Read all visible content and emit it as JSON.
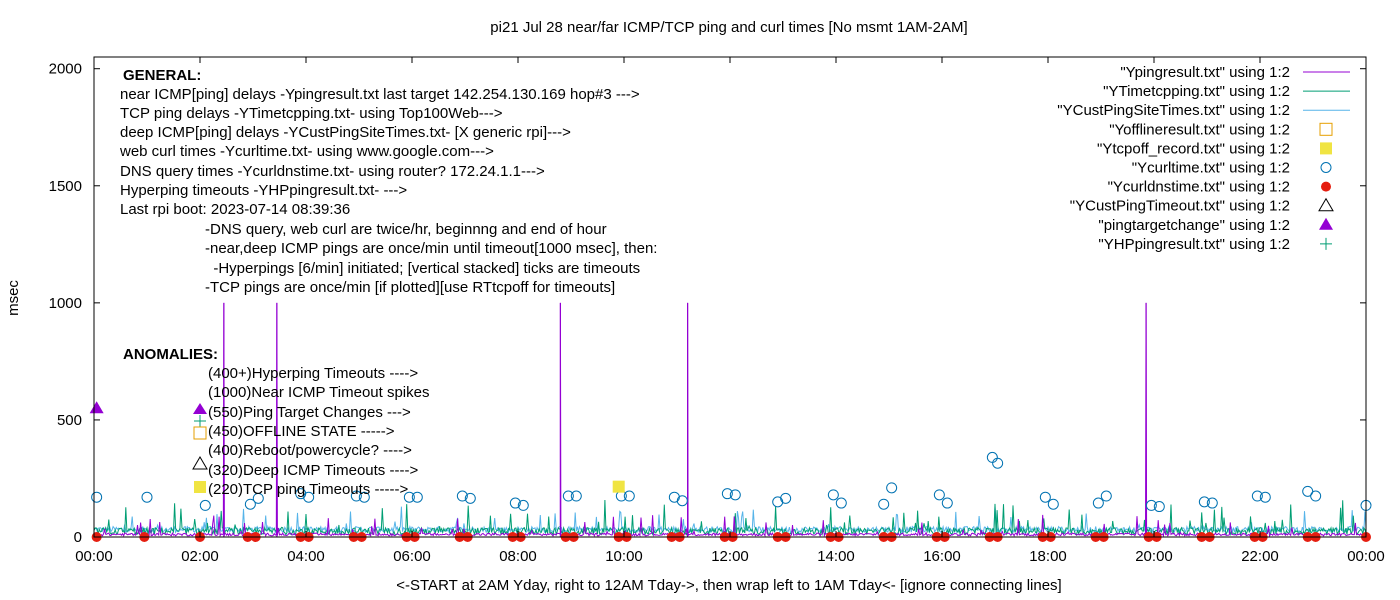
{
  "chart_data": {
    "type": "line",
    "title": "pi21 Jul 28  near/far ICMP/TCP ping and curl times [No msmt 1AM-2AM]",
    "xlabel": "<-START at 2AM Yday, right to 12AM Tday->, then wrap left to 1AM Tday<- [ignore connecting lines]",
    "ylabel": "msec",
    "xlim": [
      0,
      24
    ],
    "ylim": [
      0,
      2050
    ],
    "x_ticks": [
      "00:00",
      "02:00",
      "04:00",
      "06:00",
      "08:00",
      "10:00",
      "12:00",
      "14:00",
      "16:00",
      "18:00",
      "20:00",
      "22:00",
      "00:00"
    ],
    "y_ticks": [
      0,
      500,
      1000,
      1500,
      2000
    ],
    "legend_position": "top-right",
    "legend": [
      {
        "label": "\"Ypingresult.txt\" using 1:2",
        "style": "line",
        "color": "#9400d3"
      },
      {
        "label": "\"YTimetcpping.txt\" using 1:2",
        "style": "line",
        "color": "#009e73"
      },
      {
        "label": "\"YCustPingSiteTimes.txt\" using 1:2",
        "style": "line",
        "color": "#56b4e9"
      },
      {
        "label": "\"Yofflineresult.txt\" using 1:2",
        "style": "open-square",
        "color": "#e69f00"
      },
      {
        "label": "\"Ytcpoff_record.txt\" using 1:2",
        "style": "filled-square",
        "color": "#f0e442"
      },
      {
        "label": "\"Ycurltime.txt\" using 1:2",
        "style": "open-circle",
        "color": "#0072b2"
      },
      {
        "label": "\"Ycurldnstime.txt\" using 1:2",
        "style": "filled-circle",
        "color": "#e51e10"
      },
      {
        "label": "\"YCustPingTimeout.txt\" using 1:2",
        "style": "open-triangle",
        "color": "#000000"
      },
      {
        "label": "\"pingtargetchange\" using 1:2",
        "style": "filled-triangle",
        "color": "#9400d3"
      },
      {
        "label": "\"YHPpingresult.txt\" using 1:2",
        "style": "plus",
        "color": "#009e73"
      }
    ],
    "spikes_ypingresult": [
      {
        "x": 2.45,
        "y": 1000
      },
      {
        "x": 3.45,
        "y": 1000
      },
      {
        "x": 8.8,
        "y": 1000
      },
      {
        "x": 11.2,
        "y": 1000
      },
      {
        "x": 19.85,
        "y": 1000
      }
    ],
    "curltime_points": [
      {
        "x": 0.05,
        "y": 170
      },
      {
        "x": 1.0,
        "y": 170
      },
      {
        "x": 2.1,
        "y": 135
      },
      {
        "x": 2.95,
        "y": 140
      },
      {
        "x": 3.1,
        "y": 165
      },
      {
        "x": 3.9,
        "y": 185
      },
      {
        "x": 4.05,
        "y": 170
      },
      {
        "x": 4.95,
        "y": 175
      },
      {
        "x": 5.1,
        "y": 170
      },
      {
        "x": 5.95,
        "y": 170
      },
      {
        "x": 6.1,
        "y": 170
      },
      {
        "x": 6.95,
        "y": 175
      },
      {
        "x": 7.1,
        "y": 165
      },
      {
        "x": 7.95,
        "y": 145
      },
      {
        "x": 8.1,
        "y": 135
      },
      {
        "x": 8.95,
        "y": 175
      },
      {
        "x": 9.1,
        "y": 175
      },
      {
        "x": 9.95,
        "y": 175
      },
      {
        "x": 10.1,
        "y": 175
      },
      {
        "x": 10.95,
        "y": 170
      },
      {
        "x": 11.1,
        "y": 155
      },
      {
        "x": 11.95,
        "y": 185
      },
      {
        "x": 12.1,
        "y": 180
      },
      {
        "x": 12.9,
        "y": 150
      },
      {
        "x": 13.05,
        "y": 165
      },
      {
        "x": 13.95,
        "y": 180
      },
      {
        "x": 14.1,
        "y": 145
      },
      {
        "x": 14.9,
        "y": 140
      },
      {
        "x": 15.05,
        "y": 210
      },
      {
        "x": 15.95,
        "y": 180
      },
      {
        "x": 16.1,
        "y": 145
      },
      {
        "x": 16.95,
        "y": 340
      },
      {
        "x": 17.05,
        "y": 315
      },
      {
        "x": 17.95,
        "y": 170
      },
      {
        "x": 18.1,
        "y": 140
      },
      {
        "x": 18.95,
        "y": 145
      },
      {
        "x": 19.1,
        "y": 175
      },
      {
        "x": 19.95,
        "y": 135
      },
      {
        "x": 20.1,
        "y": 130
      },
      {
        "x": 20.95,
        "y": 150
      },
      {
        "x": 21.1,
        "y": 145
      },
      {
        "x": 21.95,
        "y": 175
      },
      {
        "x": 22.1,
        "y": 170
      },
      {
        "x": 22.9,
        "y": 195
      },
      {
        "x": 23.05,
        "y": 175
      },
      {
        "x": 24.0,
        "y": 135
      }
    ],
    "curldnstime_points_y": 0,
    "curldnstime_points_x": [
      0.05,
      0.95,
      2.0,
      2.9,
      3.05,
      3.9,
      4.05,
      4.9,
      5.05,
      5.9,
      6.05,
      6.9,
      7.05,
      7.9,
      8.05,
      8.9,
      9.05,
      9.9,
      10.05,
      10.9,
      11.05,
      11.9,
      12.05,
      12.9,
      13.05,
      13.9,
      14.05,
      14.9,
      15.05,
      15.9,
      16.05,
      16.9,
      17.05,
      17.9,
      18.05,
      18.9,
      19.05,
      19.9,
      20.05,
      20.9,
      21.05,
      21.9,
      22.05,
      22.9,
      23.05,
      24.0
    ],
    "pingtargetchange_points": [
      {
        "x": 0.05,
        "y": 550
      }
    ],
    "tcpoff_points": [
      {
        "x": 9.9,
        "y": 215
      }
    ]
  },
  "general": {
    "heading": "GENERAL:",
    "lines": [
      "near ICMP[ping] delays -Ypingresult.txt last target 142.254.130.169 hop#3 --->",
      "TCP ping delays -YTimetcpping.txt- using Top100Web--->",
      "deep ICMP[ping] delays -YCustPingSiteTimes.txt- [X generic rpi]--->",
      "web curl times -Ycurltime.txt- using www.google.com--->",
      "DNS query times -Ycurldnstime.txt- using router? 172.24.1.1--->",
      "Hyperping timeouts -YHPpingresult.txt- --->",
      "Last rpi boot: 2023-07-14 08:39:36"
    ],
    "notes": [
      "-DNS query, web curl are twice/hr, beginnng and end of hour",
      "-near,deep ICMP pings are once/min until timeout[1000 msec], then:",
      "  -Hyperpings [6/min] initiated; [vertical stacked] ticks are timeouts",
      "-TCP pings are once/min [if plotted][use RTtcpoff for timeouts]"
    ]
  },
  "anomalies": {
    "heading": "ANOMALIES:",
    "lines": [
      "(400+)Hyperping Timeouts ---->",
      "(1000)Near ICMP Timeout spikes",
      "(550)Ping Target Changes --->",
      "(450)OFFLINE STATE ----->",
      "(400)Reboot/powercycle? ---->",
      "(320)Deep ICMP Timeouts ---->",
      "(220)TCP ping Timeouts ----->"
    ]
  }
}
